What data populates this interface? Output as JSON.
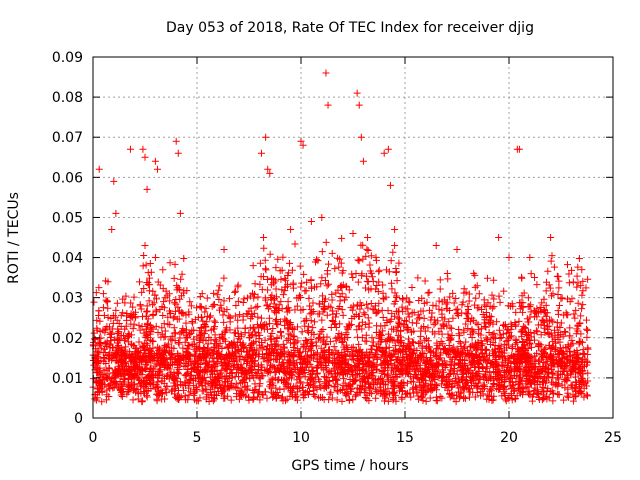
{
  "chart_data": {
    "type": "scatter",
    "title": "Day 053 of 2018, Rate Of TEC Index for receiver djig",
    "xlabel": "GPS time / hours",
    "ylabel": "ROTI / TECUs",
    "xlim": [
      0,
      25
    ],
    "ylim": [
      0,
      0.09
    ],
    "xticks": [
      0,
      5,
      10,
      15,
      20,
      25
    ],
    "yticks": [
      0,
      0.01,
      0.02,
      0.03,
      0.04,
      0.05,
      0.06,
      0.07,
      0.08,
      0.09
    ],
    "xtick_labels": [
      "0",
      "5",
      "10",
      "15",
      "20",
      "25"
    ],
    "ytick_labels": [
      "0",
      "0.01",
      "0.02",
      "0.03",
      "0.04",
      "0.05",
      "0.06",
      "0.07",
      "0.08",
      "0.09"
    ],
    "grid": true,
    "marker": "plus",
    "color": "#ff0000",
    "data_x_range": [
      0,
      23.8
    ],
    "series": [
      {
        "name": "ROTI",
        "x": [
          0.3,
          0.5,
          0.9,
          1.0,
          1.1,
          1.8,
          2.4,
          2.5,
          2.6,
          3.0,
          3.1,
          4.0,
          4.1,
          4.2,
          8.1,
          8.3,
          8.4,
          8.5,
          10.0,
          10.1,
          11.2,
          11.3,
          12.7,
          12.8,
          12.9,
          13.0,
          14.0,
          14.2,
          14.3,
          14.5,
          20.4,
          20.5,
          0.1,
          2.5,
          3.0,
          6.3,
          7.7,
          8.2,
          9.5,
          10.5,
          11.0,
          12.5,
          13.2,
          14.5,
          16.5,
          17.5,
          19.5,
          20.0,
          21.0,
          22.0,
          23.5
        ],
        "y": [
          0.062,
          0.031,
          0.047,
          0.059,
          0.051,
          0.067,
          0.067,
          0.065,
          0.057,
          0.064,
          0.062,
          0.069,
          0.066,
          0.051,
          0.066,
          0.07,
          0.062,
          0.061,
          0.069,
          0.068,
          0.086,
          0.078,
          0.081,
          0.078,
          0.07,
          0.064,
          0.066,
          0.067,
          0.058,
          0.043,
          0.067,
          0.067,
          0.012,
          0.043,
          0.04,
          0.042,
          0.038,
          0.045,
          0.047,
          0.049,
          0.05,
          0.046,
          0.045,
          0.047,
          0.043,
          0.042,
          0.045,
          0.04,
          0.04,
          0.045,
          0.037
        ]
      }
    ]
  }
}
